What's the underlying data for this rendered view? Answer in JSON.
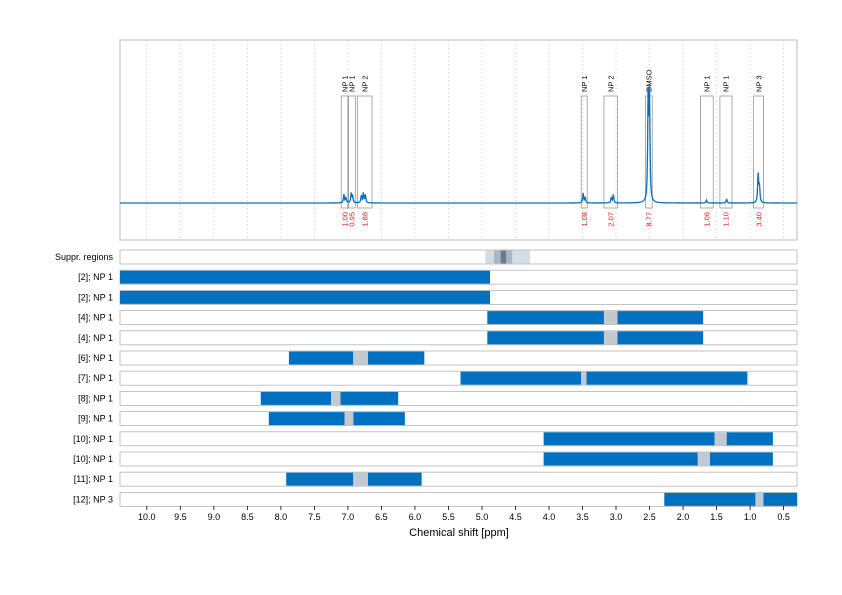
{
  "chart_data": {
    "type": "nmr-spectrum-with-range-bars",
    "xlabel": "Chemical shift [ppm]",
    "xlim": [
      10.4,
      0.3
    ],
    "x_reversed": true,
    "ticks": [
      10.0,
      9.5,
      9.0,
      8.5,
      8.0,
      7.5,
      7.0,
      6.5,
      6.0,
      5.5,
      5.0,
      4.5,
      4.0,
      3.5,
      3.0,
      2.5,
      2.0,
      1.5,
      1.0,
      0.5
    ],
    "tick_labels": [
      "10.0",
      "9.5",
      "9.0",
      "8.5",
      "8.0",
      "7.5",
      "7.0",
      "6.5",
      "6.0",
      "5.5",
      "5.0",
      "4.5",
      "4.0",
      "3.5",
      "3.0",
      "2.5",
      "2.0",
      "1.5",
      "1.0",
      "0.5"
    ],
    "colors": {
      "spectrum": "#0a6fb8",
      "bar": "#0070c0",
      "gap": "#c3c9d0",
      "integration": "#e41a1c",
      "suppr_light": "#d3dde6",
      "suppr_mid": "#a9b7c4",
      "suppr_dark": "#6b7b88"
    },
    "spectrum": {
      "baseline": 0.0,
      "peaks": [
        {
          "center": 7.06,
          "height": 0.06
        },
        {
          "center": 7.03,
          "height": 0.04
        },
        {
          "center": 6.95,
          "height": 0.07
        },
        {
          "center": 6.93,
          "height": 0.05
        },
        {
          "center": 6.8,
          "height": 0.05
        },
        {
          "center": 6.77,
          "height": 0.07
        },
        {
          "center": 6.74,
          "height": 0.06
        },
        {
          "center": 3.49,
          "height": 0.07
        },
        {
          "center": 3.46,
          "height": 0.04
        },
        {
          "center": 3.07,
          "height": 0.04
        },
        {
          "center": 3.04,
          "height": 0.06
        },
        {
          "center": 2.52,
          "height": 0.78
        },
        {
          "center": 2.5,
          "height": 0.74
        },
        {
          "center": 1.65,
          "height": 0.02
        },
        {
          "center": 1.35,
          "height": 0.03
        },
        {
          "center": 0.88,
          "height": 0.22
        },
        {
          "center": 0.86,
          "height": 0.12
        }
      ]
    },
    "peak_boxes": [
      {
        "label": "NP 1",
        "from": 7.1,
        "to": 7.0,
        "integral": "1.00"
      },
      {
        "label": "NP 1",
        "from": 6.99,
        "to": 6.89,
        "integral": "0.95"
      },
      {
        "label": "NP 2",
        "from": 6.86,
        "to": 6.64,
        "integral": "1.88"
      },
      {
        "label": "NP 1",
        "from": 3.52,
        "to": 3.43,
        "integral": "1.08"
      },
      {
        "label": "NP 2",
        "from": 3.18,
        "to": 2.98,
        "integral": "2.07"
      },
      {
        "label": "DMSO",
        "from": 2.56,
        "to": 2.46,
        "integral": "8.77"
      },
      {
        "label": "NP 1",
        "from": 1.74,
        "to": 1.55,
        "integral": "1.06"
      },
      {
        "label": "NP 1",
        "from": 1.45,
        "to": 1.27,
        "integral": "1.10"
      },
      {
        "label": "NP 3",
        "from": 0.95,
        "to": 0.8,
        "integral": "3.40"
      }
    ],
    "suppression": {
      "label": "Suppr. regions",
      "outer": [
        4.95,
        4.28
      ],
      "mid": [
        4.82,
        4.55
      ],
      "inner": [
        4.72,
        4.64
      ]
    },
    "rows": [
      {
        "label": "[2]; NP 1",
        "segments": [
          [
            10.4,
            4.88
          ]
        ],
        "gaps": []
      },
      {
        "label": "[2]; NP 1",
        "segments": [
          [
            10.4,
            4.88
          ]
        ],
        "gaps": []
      },
      {
        "label": "[4]; NP 1",
        "segments": [
          [
            4.92,
            3.18
          ],
          [
            2.98,
            1.7
          ]
        ],
        "gaps": [
          [
            3.18,
            2.98
          ]
        ]
      },
      {
        "label": "[4]; NP 1",
        "segments": [
          [
            4.92,
            3.18
          ],
          [
            2.98,
            1.7
          ]
        ],
        "gaps": [
          [
            3.18,
            2.98
          ]
        ]
      },
      {
        "label": "[6]; NP 1",
        "segments": [
          [
            7.88,
            6.92
          ],
          [
            6.7,
            5.86
          ]
        ],
        "gaps": [
          [
            6.92,
            6.7
          ]
        ]
      },
      {
        "label": "[7]; NP 1",
        "segments": [
          [
            5.32,
            3.52
          ],
          [
            3.44,
            1.04
          ]
        ],
        "gaps": [
          [
            3.52,
            3.44
          ]
        ]
      },
      {
        "label": "[8]; NP 1",
        "segments": [
          [
            8.3,
            7.25
          ],
          [
            7.11,
            6.25
          ]
        ],
        "gaps": [
          [
            7.25,
            7.11
          ]
        ]
      },
      {
        "label": "[9]; NP 1",
        "segments": [
          [
            8.18,
            7.05
          ],
          [
            6.92,
            6.15
          ]
        ],
        "gaps": [
          [
            7.05,
            6.92
          ]
        ]
      },
      {
        "label": "[10]; NP 1",
        "segments": [
          [
            4.08,
            1.53
          ],
          [
            1.35,
            0.66
          ]
        ],
        "gaps": [
          [
            1.53,
            1.35
          ]
        ]
      },
      {
        "label": "[10]; NP 1",
        "segments": [
          [
            4.08,
            1.78
          ],
          [
            1.6,
            0.66
          ]
        ],
        "gaps": [
          [
            1.78,
            1.6
          ]
        ]
      },
      {
        "label": "[11]; NP 1",
        "segments": [
          [
            7.92,
            6.92
          ],
          [
            6.7,
            5.9
          ]
        ],
        "gaps": [
          [
            6.92,
            6.7
          ]
        ]
      },
      {
        "label": "[12]; NP 3",
        "segments": [
          [
            2.28,
            0.92
          ],
          [
            0.8,
            0.3
          ]
        ],
        "gaps": [
          [
            0.92,
            0.8
          ]
        ]
      }
    ]
  }
}
